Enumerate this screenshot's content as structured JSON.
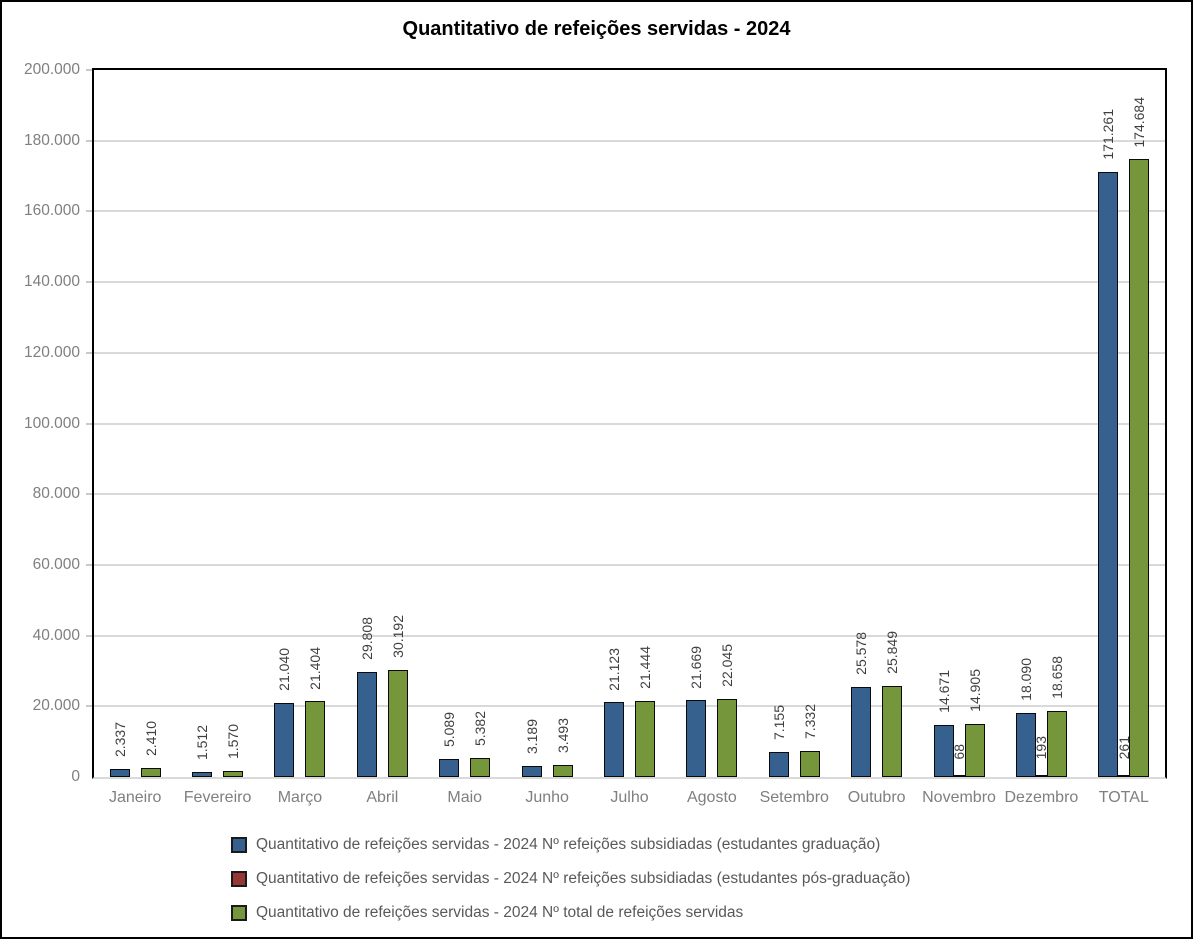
{
  "title": "Quantitativo de refeições servidas - 2024",
  "style": {
    "background": "#FFFFFF",
    "frame_border": "#000000",
    "plot_border": "#000000",
    "gridline": "#D9D9D9",
    "axis_text": "#7F7F7F",
    "data_label_text": "#3F3F3F",
    "legend_text": "#595959",
    "bar_border": "#0A0A0A"
  },
  "chart_data": {
    "type": "bar",
    "title": "Quantitativo de refeições servidas - 2024",
    "categories": [
      "Janeiro",
      "Fevereiro",
      "Março",
      "Abril",
      "Maio",
      "Junho",
      "Julho",
      "Agosto",
      "Setembro",
      "Outubro",
      "Novembro",
      "Dezembro",
      "TOTAL"
    ],
    "series": [
      {
        "key": "graduacao",
        "name": "Quantitativo de refeições servidas - 2024 Nº refeições subsidiadas (estudantes graduação)",
        "color": "#36618F",
        "values": [
          2337,
          1512,
          21040,
          29808,
          5089,
          3189,
          21123,
          21669,
          7155,
          25578,
          14671,
          18090,
          171261
        ],
        "labels": [
          "2.337",
          "1.512",
          "21.040",
          "29.808",
          "5.089",
          "3.189",
          "21.123",
          "21.669",
          "7.155",
          "25.578",
          "14.671",
          "18.090",
          "171.261"
        ]
      },
      {
        "key": "pos-graduacao",
        "name": "Quantitativo de refeições servidas - 2024 Nº refeições subsidiadas (estudantes pós-graduação)",
        "color": "#953735",
        "values": [
          null,
          null,
          null,
          null,
          null,
          null,
          null,
          null,
          null,
          null,
          68,
          193,
          261
        ],
        "labels": [
          null,
          null,
          null,
          null,
          null,
          null,
          null,
          null,
          null,
          null,
          "68",
          "193",
          "261"
        ]
      },
      {
        "key": "total",
        "name": "Quantitativo de refeições servidas - 2024 Nº total de refeições servidas",
        "color": "#76963C",
        "values": [
          2410,
          1570,
          21404,
          30192,
          5382,
          3493,
          21444,
          22045,
          7332,
          25849,
          14905,
          18658,
          174684
        ],
        "labels": [
          "2.410",
          "1.570",
          "21.404",
          "30.192",
          "5.382",
          "3.493",
          "21.444",
          "22.045",
          "7.332",
          "25.849",
          "14.905",
          "18.658",
          "174.684"
        ]
      }
    ],
    "y_axis": {
      "min": 0,
      "max": 200000,
      "step": 20000,
      "tick_labels": [
        "0",
        "20.000",
        "40.000",
        "60.000",
        "80.000",
        "100.000",
        "120.000",
        "140.000",
        "160.000",
        "180.000",
        "200.000"
      ]
    },
    "ylim": [
      0,
      200000
    ],
    "grid": true,
    "bar_label_rotation": 90,
    "legend_position": "bottom-left",
    "xlabel": "",
    "ylabel": ""
  }
}
